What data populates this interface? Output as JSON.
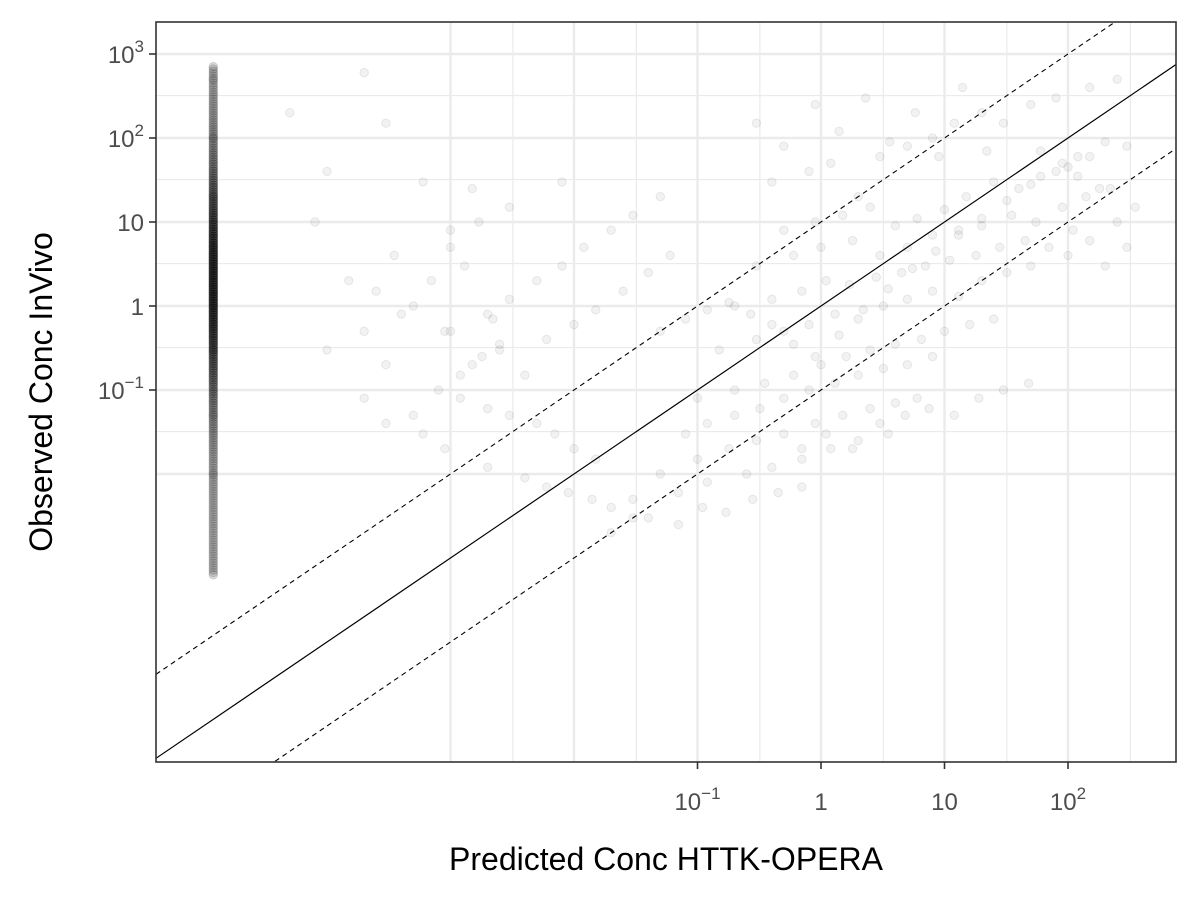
{
  "chart_data": {
    "type": "scatter",
    "title": "",
    "xlabel": "Predicted Conc HTTK-OPERA",
    "ylabel": "Observed Conc InVivo",
    "x_scale": "log10",
    "y_scale": "log10",
    "xlim": [
      1e-05,
      700
    ],
    "ylim": [
      0.0006,
      2000
    ],
    "x_ticks": [
      {
        "value": 0.1,
        "base": "10",
        "exp": "−1",
        "plain": ""
      },
      {
        "value": 1,
        "base": "",
        "exp": "",
        "plain": "1"
      },
      {
        "value": 10,
        "base": "",
        "exp": "",
        "plain": "10"
      },
      {
        "value": 100,
        "base": "10",
        "exp": "2",
        "plain": ""
      }
    ],
    "y_ticks": [
      {
        "value": 1000,
        "base": "10",
        "exp": "3",
        "plain": ""
      },
      {
        "value": 100,
        "base": "10",
        "exp": "2",
        "plain": ""
      },
      {
        "value": 10,
        "base": "",
        "exp": "",
        "plain": "10"
      },
      {
        "value": 1,
        "base": "",
        "exp": "",
        "plain": "1"
      },
      {
        "value": 0.1,
        "base": "10",
        "exp": "−1",
        "plain": ""
      }
    ],
    "x_gridlines_major": [
      0.001,
      0.01,
      0.1,
      1,
      10,
      100
    ],
    "x_gridlines_minor": [
      0.0032,
      0.032,
      0.32,
      3.2,
      32,
      320
    ],
    "y_gridlines_major": [
      0.01,
      0.1,
      1,
      10,
      100,
      1000
    ],
    "y_gridlines_minor": [
      0.032,
      0.32,
      3.2,
      32,
      320
    ],
    "grid": true,
    "reference_lines": [
      {
        "type": "identity",
        "factor": 1,
        "style": "solid"
      },
      {
        "type": "identity",
        "factor": 10,
        "style": "dashed"
      },
      {
        "type": "identity",
        "factor": 0.1,
        "style": "dashed"
      }
    ],
    "point_color": "#000000",
    "point_alpha": 0.05,
    "grid_color": "#ebebeb",
    "panel_border_color": "#333333",
    "series": [
      {
        "name": "",
        "points": [
          [
            0.4,
            30
          ],
          [
            0.8,
            40
          ],
          [
            1.2,
            50
          ],
          [
            2,
            20
          ],
          [
            3,
            60
          ],
          [
            5,
            80
          ],
          [
            8,
            100
          ],
          [
            12,
            150
          ],
          [
            20,
            200
          ],
          [
            30,
            150
          ],
          [
            50,
            250
          ],
          [
            80,
            300
          ],
          [
            150,
            400
          ],
          [
            250,
            500
          ],
          [
            0.5,
            8
          ],
          [
            0.9,
            10
          ],
          [
            1.5,
            12
          ],
          [
            2.5,
            15
          ],
          [
            4,
            9
          ],
          [
            6,
            11
          ],
          [
            10,
            14
          ],
          [
            15,
            20
          ],
          [
            25,
            30
          ],
          [
            40,
            25
          ],
          [
            60,
            35
          ],
          [
            100,
            45
          ],
          [
            150,
            60
          ],
          [
            300,
            80
          ],
          [
            0.3,
            3
          ],
          [
            0.6,
            4
          ],
          [
            1,
            5
          ],
          [
            1.8,
            6
          ],
          [
            3,
            4
          ],
          [
            5,
            5
          ],
          [
            8,
            7
          ],
          [
            13,
            8
          ],
          [
            20,
            9
          ],
          [
            35,
            12
          ],
          [
            55,
            10
          ],
          [
            90,
            15
          ],
          [
            140,
            20
          ],
          [
            220,
            25
          ],
          [
            0.2,
            1
          ],
          [
            0.4,
            1.2
          ],
          [
            0.7,
            1.5
          ],
          [
            1.1,
            2
          ],
          [
            1.7,
            1.8
          ],
          [
            2.8,
            2.2
          ],
          [
            4.5,
            2.5
          ],
          [
            7,
            3
          ],
          [
            11,
            3.5
          ],
          [
            18,
            4
          ],
          [
            28,
            5
          ],
          [
            45,
            6
          ],
          [
            70,
            5
          ],
          [
            110,
            8
          ],
          [
            0.15,
            0.3
          ],
          [
            0.3,
            0.4
          ],
          [
            0.5,
            0.5
          ],
          [
            0.8,
            0.6
          ],
          [
            1.3,
            0.8
          ],
          [
            2,
            0.7
          ],
          [
            3.2,
            1
          ],
          [
            5,
            1.2
          ],
          [
            8,
            1.5
          ],
          [
            13,
            1.3
          ],
          [
            20,
            2
          ],
          [
            32,
            2.5
          ],
          [
            50,
            3
          ],
          [
            0.1,
            0.08
          ],
          [
            0.2,
            0.1
          ],
          [
            0.35,
            0.12
          ],
          [
            0.6,
            0.15
          ],
          [
            1,
            0.2
          ],
          [
            1.6,
            0.25
          ],
          [
            2.5,
            0.3
          ],
          [
            4,
            0.35
          ],
          [
            6.5,
            0.4
          ],
          [
            10,
            0.5
          ],
          [
            16,
            0.6
          ],
          [
            25,
            0.7
          ],
          [
            0.08,
            0.03
          ],
          [
            0.12,
            0.04
          ],
          [
            0.2,
            0.05
          ],
          [
            0.32,
            0.06
          ],
          [
            0.5,
            0.08
          ],
          [
            0.8,
            0.1
          ],
          [
            1.3,
            0.12
          ],
          [
            2,
            0.15
          ],
          [
            3.2,
            0.18
          ],
          [
            5,
            0.2
          ],
          [
            8,
            0.25
          ],
          [
            0.05,
            0.01
          ],
          [
            0.1,
            0.015
          ],
          [
            0.18,
            0.02
          ],
          [
            0.3,
            0.025
          ],
          [
            0.5,
            0.03
          ],
          [
            0.9,
            0.04
          ],
          [
            1.5,
            0.05
          ],
          [
            2.5,
            0.06
          ],
          [
            4,
            0.07
          ],
          [
            6,
            0.08
          ],
          [
            0.03,
            0.005
          ],
          [
            0.07,
            0.006
          ],
          [
            0.12,
            0.008
          ],
          [
            0.25,
            0.01
          ],
          [
            0.4,
            0.012
          ],
          [
            0.7,
            0.015
          ],
          [
            1.2,
            0.02
          ],
          [
            2,
            0.025
          ],
          [
            3.5,
            0.03
          ],
          [
            0.001,
            0.5
          ],
          [
            0.002,
            0.8
          ],
          [
            0.003,
            1.2
          ],
          [
            0.005,
            2
          ],
          [
            0.008,
            3
          ],
          [
            0.012,
            5
          ],
          [
            0.02,
            8
          ],
          [
            0.03,
            12
          ],
          [
            0.05,
            20
          ],
          [
            0.008,
            30
          ],
          [
            0.0015,
            0.2
          ],
          [
            0.0025,
            0.3
          ],
          [
            0.004,
            0.15
          ],
          [
            0.006,
            0.4
          ],
          [
            0.01,
            0.6
          ],
          [
            0.015,
            0.9
          ],
          [
            0.025,
            1.5
          ],
          [
            0.04,
            2.5
          ],
          [
            0.06,
            4
          ],
          [
            0.0008,
            0.1
          ],
          [
            0.0012,
            0.08
          ],
          [
            0.002,
            0.06
          ],
          [
            0.003,
            0.05
          ],
          [
            0.005,
            0.04
          ],
          [
            0.007,
            0.03
          ],
          [
            0.01,
            0.02
          ],
          [
            0.015,
            0.015
          ],
          [
            0.0005,
            1
          ],
          [
            0.0007,
            2
          ],
          [
            0.0009,
            0.5
          ],
          [
            0.001,
            5
          ],
          [
            0.0013,
            3
          ],
          [
            0.0017,
            10
          ],
          [
            0.0022,
            0.7
          ],
          [
            0.003,
            15
          ],
          [
            0.002,
            0.012
          ],
          [
            0.004,
            0.009
          ],
          [
            0.006,
            0.007
          ],
          [
            0.009,
            0.006
          ],
          [
            0.014,
            0.005
          ],
          [
            0.02,
            0.004
          ],
          [
            0.03,
            0.003
          ],
          [
            0.0001,
            0.3
          ],
          [
            0.0002,
            0.5
          ],
          [
            0.0003,
            0.2
          ],
          [
            0.0004,
            0.8
          ],
          [
            0.00015,
            2
          ],
          [
            0.00025,
            1.5
          ],
          [
            0.00035,
            4
          ],
          [
            0.0005,
            0.05
          ],
          [
            0.0002,
            0.08
          ],
          [
            0.0003,
            0.04
          ],
          [
            0.0006,
            0.03
          ],
          [
            0.0009,
            0.02
          ],
          [
            0.0012,
            0.15
          ],
          [
            0.0018,
            0.25
          ],
          [
            0.0025,
            0.35
          ],
          [
            5e-05,
            200
          ],
          [
            0.0001,
            40
          ],
          [
            0.0002,
            600
          ],
          [
            8e-05,
            10
          ],
          [
            0.0003,
            150
          ],
          [
            0.0006,
            30
          ],
          [
            0.001,
            8
          ],
          [
            0.0015,
            25
          ],
          [
            0.05,
            0.5
          ],
          [
            0.08,
            0.7
          ],
          [
            0.12,
            0.9
          ],
          [
            0.18,
            1.1
          ],
          [
            0.27,
            0.8
          ],
          [
            0.4,
            0.6
          ],
          [
            0.6,
            0.35
          ],
          [
            0.9,
            0.25
          ],
          [
            1.4,
            0.45
          ],
          [
            2.2,
            0.9
          ],
          [
            3.5,
            1.6
          ],
          [
            5.5,
            2.8
          ],
          [
            8.5,
            4.5
          ],
          [
            13,
            7
          ],
          [
            20,
            11
          ],
          [
            32,
            18
          ],
          [
            50,
            28
          ],
          [
            80,
            40
          ],
          [
            120,
            60
          ],
          [
            200,
            90
          ],
          [
            0.7,
            0.02
          ],
          [
            1.1,
            0.03
          ],
          [
            1.8,
            0.02
          ],
          [
            3,
            0.04
          ],
          [
            4.8,
            0.05
          ],
          [
            7.5,
            0.06
          ],
          [
            12,
            0.05
          ],
          [
            19,
            0.08
          ],
          [
            30,
            0.1
          ],
          [
            48,
            0.12
          ],
          [
            0.02,
            0.002
          ],
          [
            0.04,
            0.003
          ],
          [
            0.07,
            0.0025
          ],
          [
            0.11,
            0.004
          ],
          [
            0.17,
            0.0035
          ],
          [
            0.28,
            0.005
          ],
          [
            0.45,
            0.006
          ],
          [
            0.7,
            0.007
          ],
          [
            100,
            4
          ],
          [
            150,
            6
          ],
          [
            200,
            3
          ],
          [
            250,
            10
          ],
          [
            300,
            5
          ],
          [
            350,
            15
          ],
          [
            180,
            25
          ],
          [
            120,
            35
          ],
          [
            90,
            50
          ],
          [
            60,
            70
          ],
          [
            0.3,
            150
          ],
          [
            0.5,
            80
          ],
          [
            0.9,
            250
          ],
          [
            1.4,
            120
          ],
          [
            2.3,
            300
          ],
          [
            3.6,
            90
          ],
          [
            5.8,
            200
          ],
          [
            9,
            60
          ],
          [
            14,
            400
          ],
          [
            22,
            70
          ],
          [
            1.2e-05,
            1
          ],
          [
            1.2e-05,
            5
          ],
          [
            1.2e-05,
            0.3
          ],
          [
            1.2e-05,
            20
          ],
          [
            1.2e-05,
            0.05
          ],
          [
            1.2e-05,
            100
          ],
          [
            1.2e-05,
            0.01
          ],
          [
            1.2e-05,
            500
          ]
        ]
      }
    ]
  }
}
